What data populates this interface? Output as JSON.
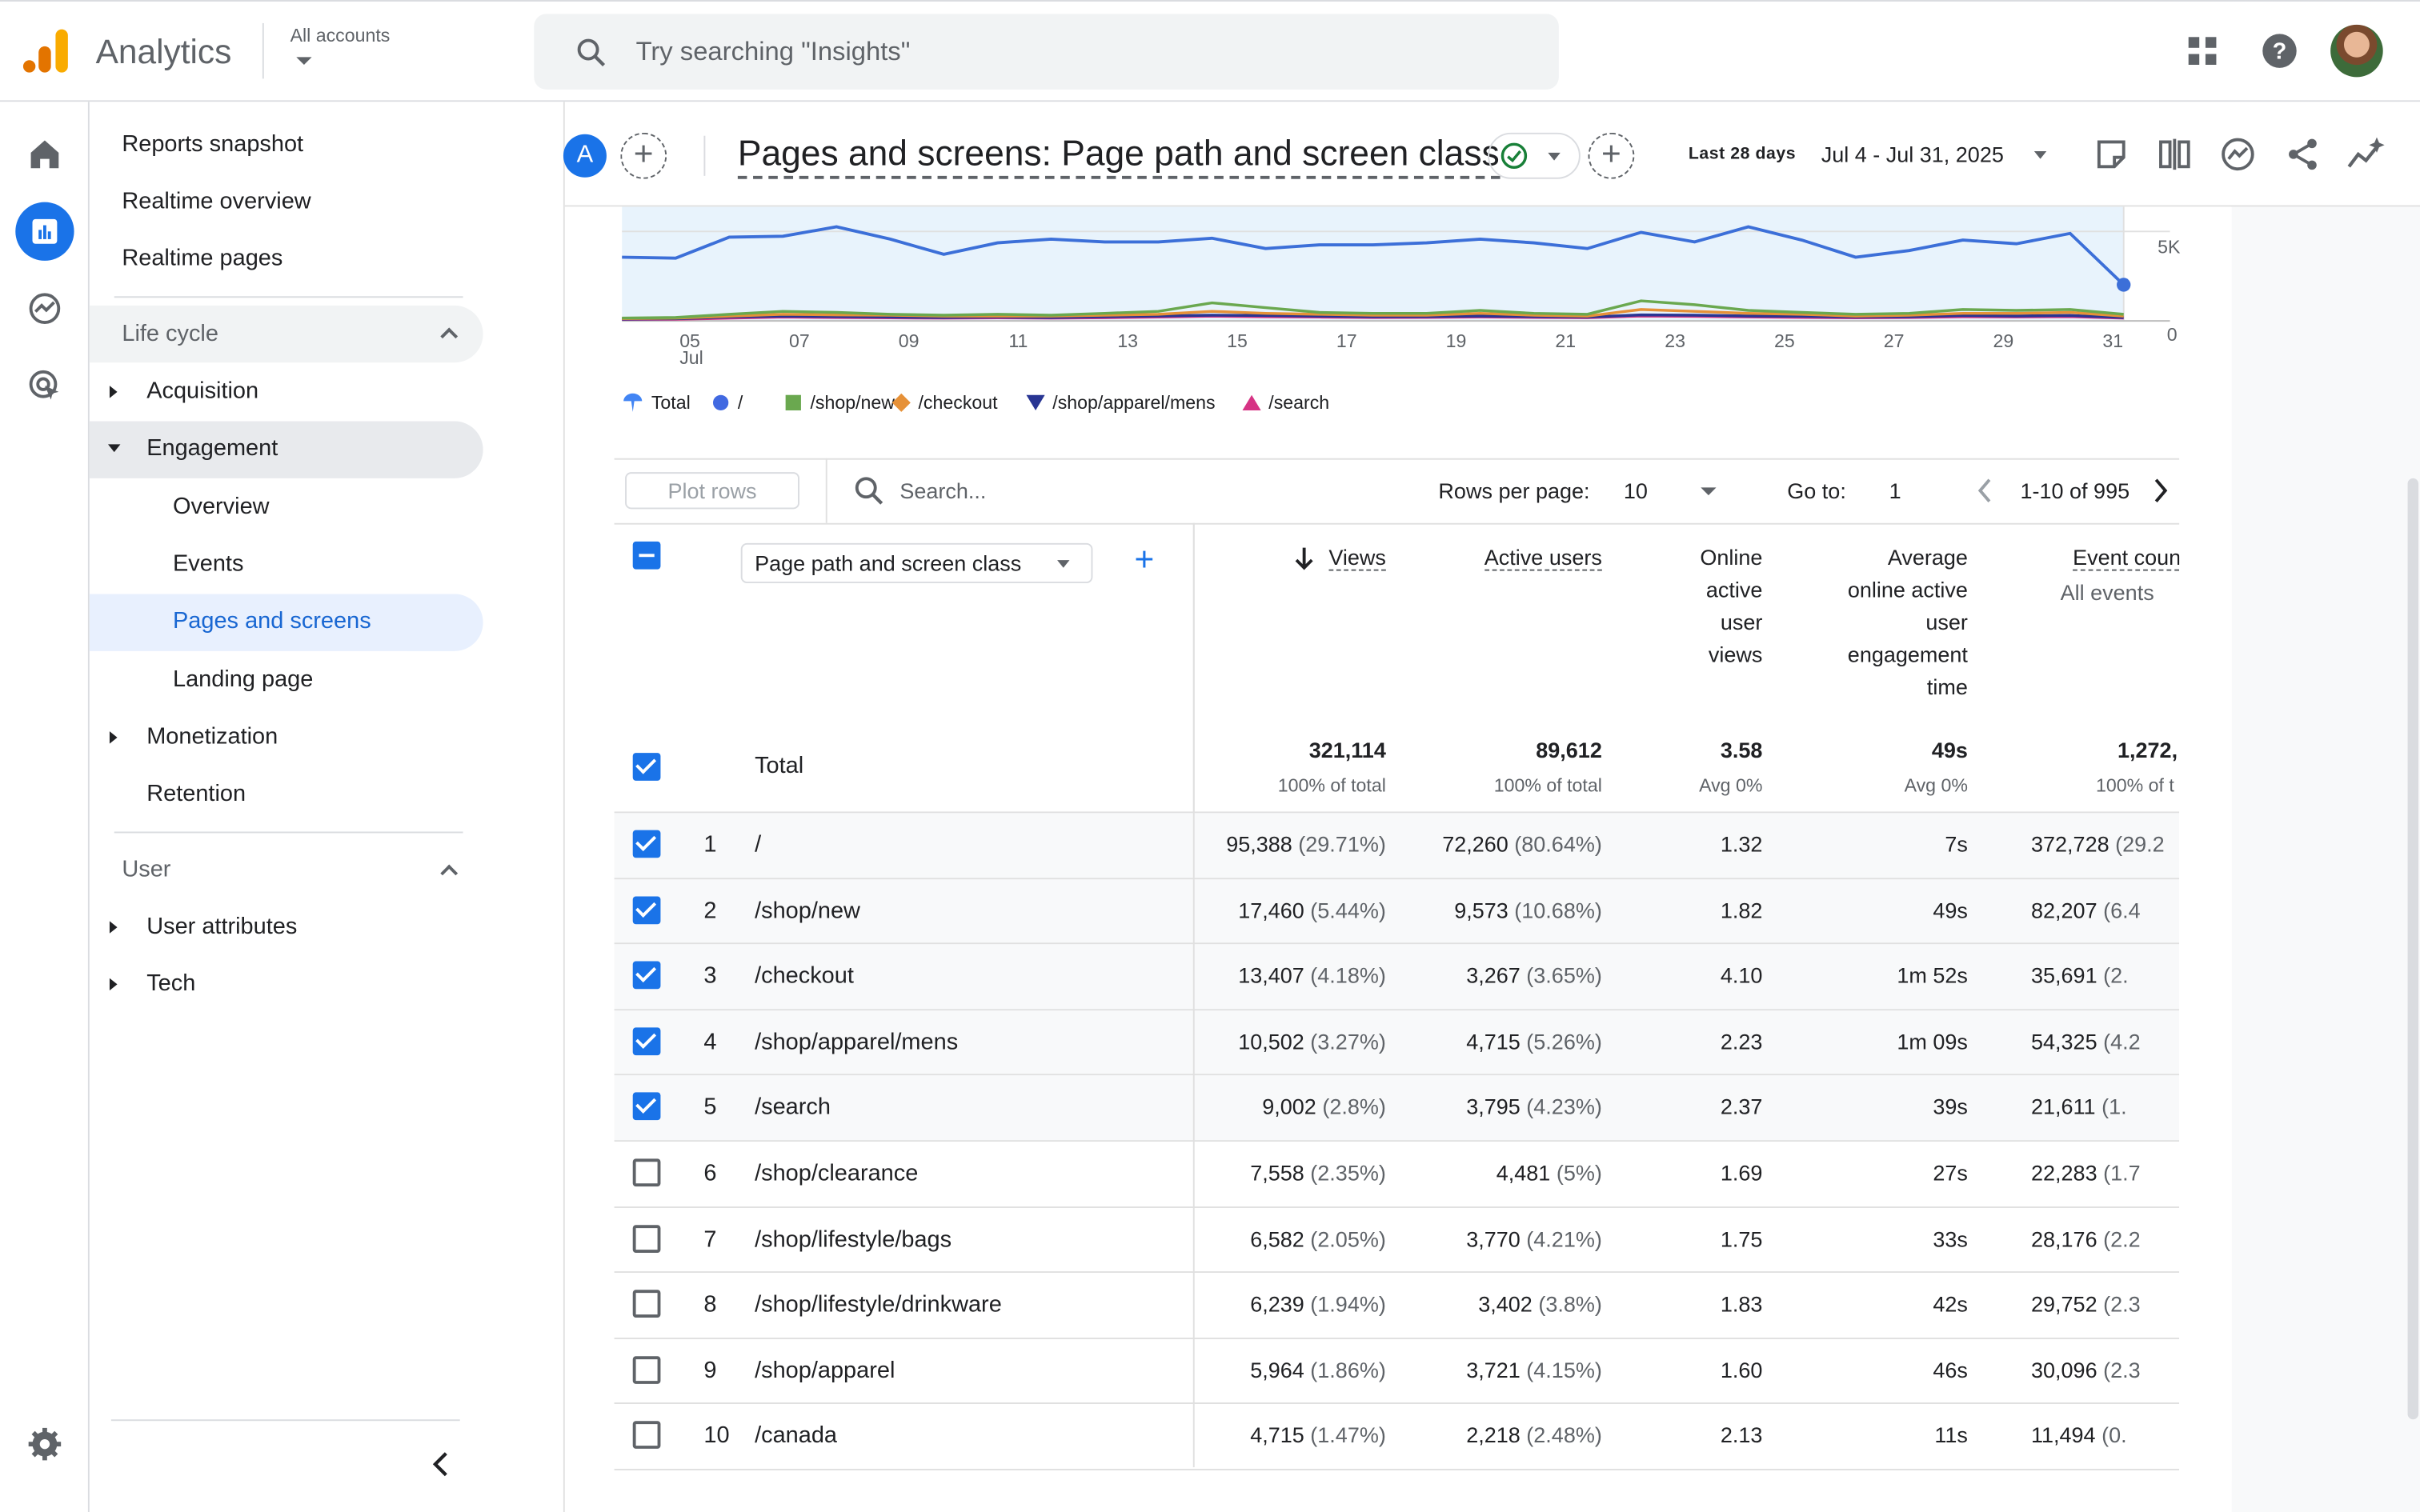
{
  "app": {
    "name": "Analytics",
    "account_label": "All accounts"
  },
  "search": {
    "placeholder": "Try searching \"Insights\""
  },
  "nav": {
    "top_items": [
      "Reports snapshot",
      "Realtime overview",
      "Realtime pages"
    ],
    "lifecycle": {
      "label": "Life cycle",
      "acquisition": "Acquisition",
      "engagement": "Engagement",
      "engagement_children": [
        "Overview",
        "Events",
        "Pages and screens",
        "Landing page"
      ],
      "monetization": "Monetization",
      "retention": "Retention"
    },
    "user": {
      "label": "User",
      "attributes": "User attributes",
      "tech": "Tech"
    }
  },
  "header": {
    "segment": "A",
    "title": "Pages and screens: Page path and screen class",
    "date_label": "Last 28 days",
    "date_range": "Jul 4 - Jul 31, 2025"
  },
  "chart_data": {
    "type": "line",
    "x_ticks": [
      "05",
      "07",
      "09",
      "11",
      "13",
      "15",
      "17",
      "19",
      "21",
      "23",
      "25",
      "27",
      "29",
      "31"
    ],
    "x_sub_label": "Jul",
    "y_ticks": [
      "5K",
      "0"
    ],
    "ylim": [
      0,
      6000
    ],
    "legend": [
      {
        "name": "Total",
        "color": "#4285f4",
        "marker": "pin"
      },
      {
        "name": "/",
        "color": "#4169e1",
        "marker": "circle"
      },
      {
        "name": "/shop/new",
        "color": "#6aa84f",
        "marker": "square"
      },
      {
        "name": "/checkout",
        "color": "#e69138",
        "marker": "diamond"
      },
      {
        "name": "/shop/apparel/mens",
        "color": "#283593",
        "marker": "triangle-down"
      },
      {
        "name": "/search",
        "color": "#d63384",
        "marker": "triangle-up"
      }
    ],
    "series": [
      {
        "name": "/",
        "color": "#3c6fd8",
        "values": [
          3350,
          3300,
          4400,
          4450,
          4950,
          4300,
          3500,
          4100,
          4300,
          4150,
          4150,
          4350,
          3800,
          4000,
          4000,
          4100,
          4300,
          4100,
          3800,
          4650,
          4150,
          4950,
          4250,
          3350,
          3700,
          4250,
          4050,
          4600,
          1900
        ]
      },
      {
        "name": "/shop/new",
        "color": "#6aa84f",
        "values": [
          150,
          180,
          350,
          500,
          450,
          350,
          300,
          350,
          300,
          400,
          500,
          950,
          700,
          450,
          400,
          400,
          550,
          400,
          350,
          1050,
          850,
          550,
          450,
          350,
          400,
          600,
          550,
          600,
          350
        ]
      },
      {
        "name": "/checkout",
        "color": "#e69138",
        "values": [
          120,
          150,
          250,
          350,
          320,
          300,
          250,
          250,
          250,
          300,
          350,
          500,
          400,
          350,
          300,
          300,
          400,
          300,
          250,
          600,
          500,
          400,
          350,
          250,
          300,
          400,
          400,
          450,
          250
        ]
      },
      {
        "name": "/shop/apparel/mens",
        "color": "#283593",
        "values": [
          100,
          110,
          200,
          250,
          230,
          200,
          180,
          200,
          180,
          220,
          260,
          300,
          280,
          250,
          220,
          230,
          260,
          230,
          200,
          320,
          300,
          260,
          240,
          200,
          220,
          280,
          260,
          280,
          180
        ]
      },
      {
        "name": "/search",
        "color": "#d63384",
        "values": [
          80,
          90,
          150,
          200,
          180,
          160,
          150,
          160,
          150,
          170,
          200,
          250,
          220,
          200,
          180,
          190,
          210,
          190,
          170,
          260,
          240,
          210,
          190,
          160,
          180,
          220,
          210,
          230,
          150
        ]
      }
    ]
  },
  "toolbar": {
    "plot_rows": "Plot rows",
    "search_placeholder": "Search...",
    "rows_per_page_label": "Rows per page:",
    "rows_per_page": "10",
    "goto_label": "Go to:",
    "goto_value": "1",
    "range": "1-10 of 995"
  },
  "table": {
    "dimension": "Page path and screen class",
    "columns": {
      "views": "Views",
      "active_users": "Active users",
      "online_views": [
        "Online",
        "active",
        "user",
        "views"
      ],
      "avg_time": [
        "Average",
        "online active",
        "user",
        "engagement",
        "time"
      ],
      "event_count": "Event count",
      "event_sub": "All events"
    },
    "total": {
      "label": "Total",
      "views": "321,114",
      "views_sub": "100% of total",
      "users": "89,612",
      "users_sub": "100% of total",
      "online": "3.58",
      "online_sub": "Avg 0%",
      "time": "49s",
      "time_sub": "Avg 0%",
      "events": "1,272,",
      "events_sub": "100% of t"
    },
    "rows": [
      {
        "idx": "1",
        "path": "/",
        "views": "95,388",
        "views_pct": "(29.71%)",
        "users": "72,260",
        "users_pct": "(80.64%)",
        "online": "1.32",
        "time": "7s",
        "events": "372,728",
        "events_pct": "(29.2",
        "checked": true
      },
      {
        "idx": "2",
        "path": "/shop/new",
        "views": "17,460",
        "views_pct": "(5.44%)",
        "users": "9,573",
        "users_pct": "(10.68%)",
        "online": "1.82",
        "time": "49s",
        "events": "82,207",
        "events_pct": "(6.4",
        "checked": true
      },
      {
        "idx": "3",
        "path": "/checkout",
        "views": "13,407",
        "views_pct": "(4.18%)",
        "users": "3,267",
        "users_pct": "(3.65%)",
        "online": "4.10",
        "time": "1m 52s",
        "events": "35,691",
        "events_pct": "(2.",
        "checked": true
      },
      {
        "idx": "4",
        "path": "/shop/apparel/mens",
        "views": "10,502",
        "views_pct": "(3.27%)",
        "users": "4,715",
        "users_pct": "(5.26%)",
        "online": "2.23",
        "time": "1m 09s",
        "events": "54,325",
        "events_pct": "(4.2",
        "checked": true
      },
      {
        "idx": "5",
        "path": "/search",
        "views": "9,002",
        "views_pct": "(2.8%)",
        "users": "3,795",
        "users_pct": "(4.23%)",
        "online": "2.37",
        "time": "39s",
        "events": "21,611",
        "events_pct": "(1.",
        "checked": true
      },
      {
        "idx": "6",
        "path": "/shop/clearance",
        "views": "7,558",
        "views_pct": "(2.35%)",
        "users": "4,481",
        "users_pct": "(5%)",
        "online": "1.69",
        "time": "27s",
        "events": "22,283",
        "events_pct": "(1.7",
        "checked": false
      },
      {
        "idx": "7",
        "path": "/shop/lifestyle/bags",
        "views": "6,582",
        "views_pct": "(2.05%)",
        "users": "3,770",
        "users_pct": "(4.21%)",
        "online": "1.75",
        "time": "33s",
        "events": "28,176",
        "events_pct": "(2.2",
        "checked": false
      },
      {
        "idx": "8",
        "path": "/shop/lifestyle/drinkware",
        "views": "6,239",
        "views_pct": "(1.94%)",
        "users": "3,402",
        "users_pct": "(3.8%)",
        "online": "1.83",
        "time": "42s",
        "events": "29,752",
        "events_pct": "(2.3",
        "checked": false
      },
      {
        "idx": "9",
        "path": "/shop/apparel",
        "views": "5,964",
        "views_pct": "(1.86%)",
        "users": "3,721",
        "users_pct": "(4.15%)",
        "online": "1.60",
        "time": "46s",
        "events": "30,096",
        "events_pct": "(2.3",
        "checked": false
      },
      {
        "idx": "10",
        "path": "/canada",
        "views": "4,715",
        "views_pct": "(1.47%)",
        "users": "2,218",
        "users_pct": "(2.48%)",
        "online": "2.13",
        "time": "11s",
        "events": "11,494",
        "events_pct": "(0.",
        "checked": false
      }
    ]
  }
}
